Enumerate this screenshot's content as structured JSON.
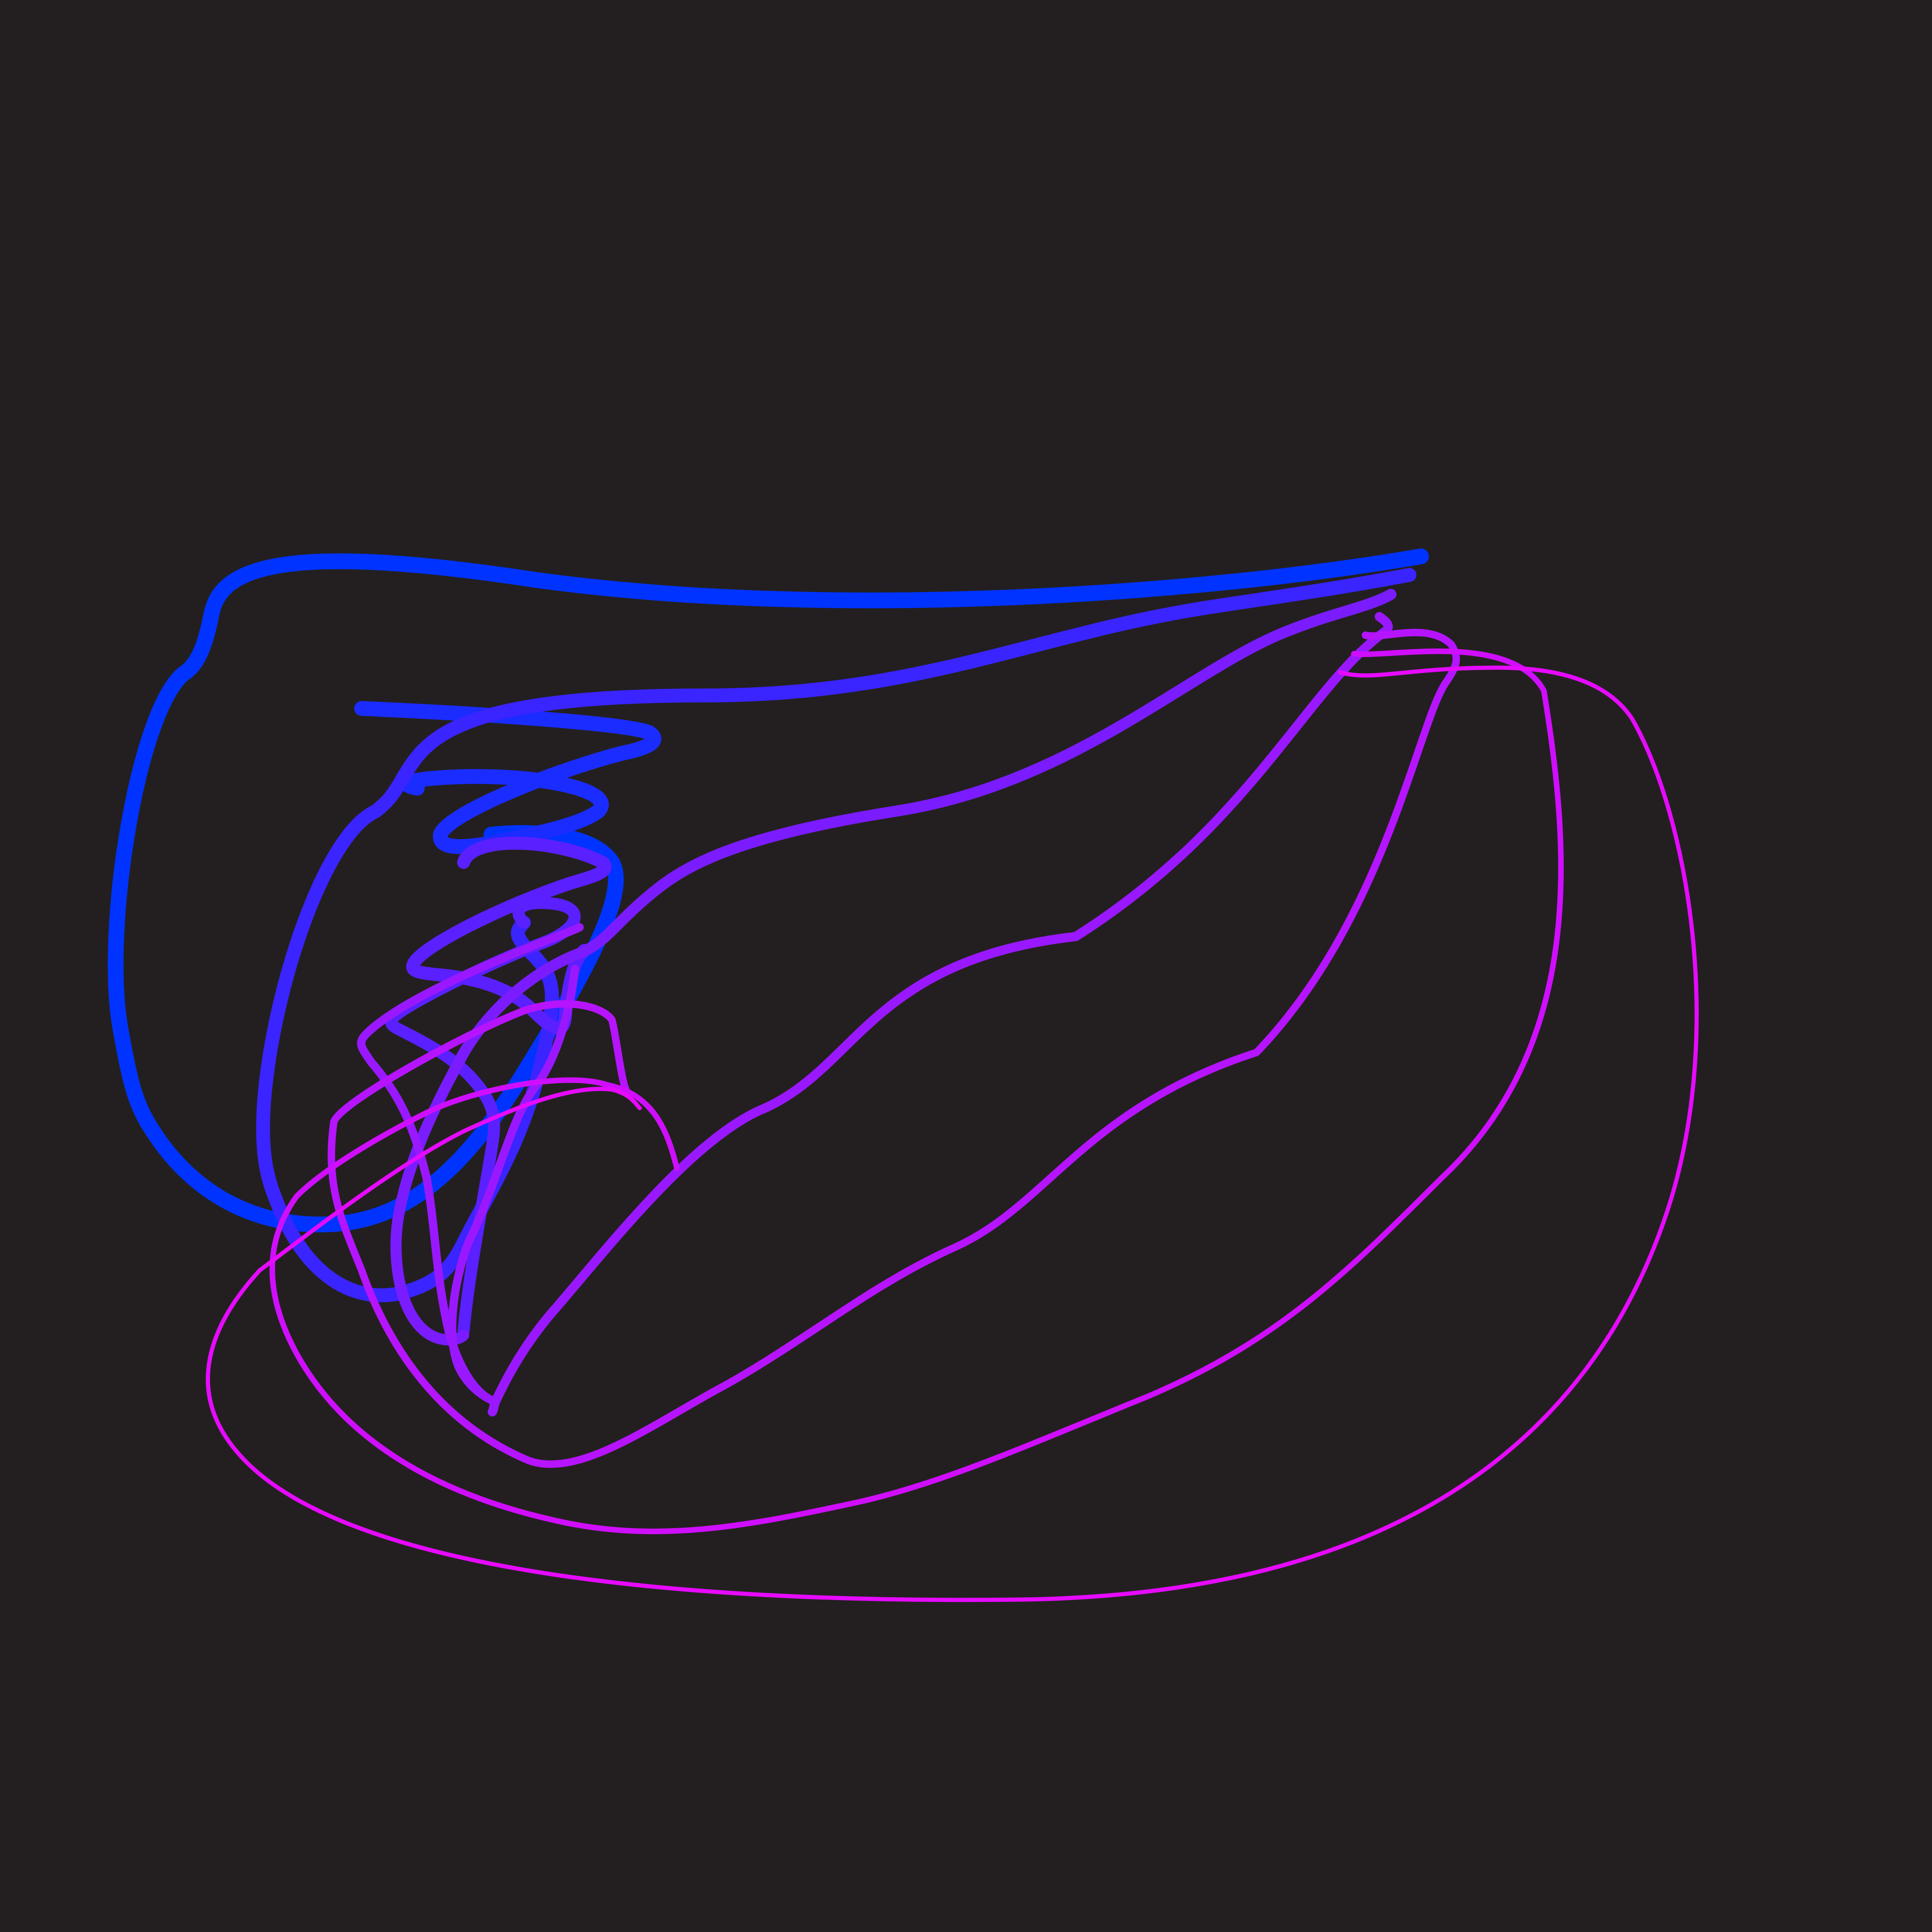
{
  "artwork": {
    "background_color": "#231f20",
    "stroke_gradient": {
      "start_color": "#0033ff",
      "middle_color": "#8a1aff",
      "end_color": "#e60aff"
    },
    "strokes": [
      {
        "name": "outer-blue-loop",
        "color": "#0033ff"
      },
      {
        "name": "blue-zigzag-spiral",
        "color": "#1a2cff"
      },
      {
        "name": "indigo-loop",
        "color": "#3a24ff"
      },
      {
        "name": "inner-zigzag",
        "color": "#5a20ff"
      },
      {
        "name": "violet-wave",
        "color": "#7a1cff"
      },
      {
        "name": "purple-wave",
        "color": "#9a18ff"
      },
      {
        "name": "magenta-loop",
        "color": "#b614ff"
      },
      {
        "name": "magenta-outer-loop",
        "color": "#d00eff"
      },
      {
        "name": "pink-outermost-loop",
        "color": "#e60aff"
      }
    ]
  }
}
